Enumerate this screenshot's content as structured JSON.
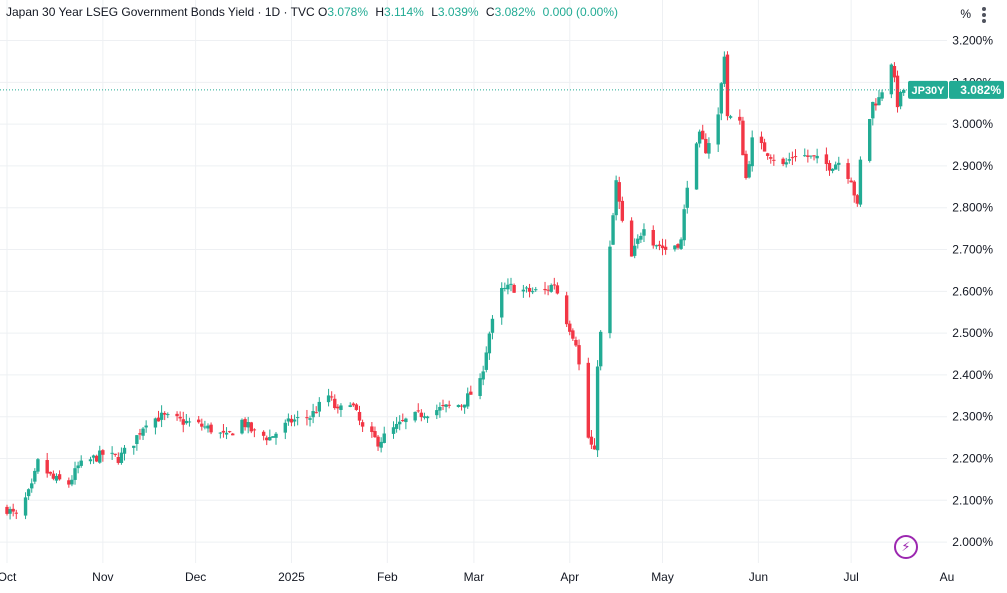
{
  "header": {
    "title": "Japan 30 Year LSEG Government Bonds Yield · 1D · TVC",
    "o_label": "O",
    "o_value": "3.078%",
    "h_label": "H",
    "h_value": "3.114%",
    "l_label": "L",
    "l_value": "3.039%",
    "c_label": "C",
    "c_value": "3.082%",
    "change": "0.000 (0.00%)"
  },
  "scale_unit": "%",
  "price_tag": {
    "symbol": "JP30Y",
    "value": "3.082%"
  },
  "colors": {
    "up": "#22ab94",
    "down": "#f23645",
    "accent": "#22ab94",
    "grid": "#eef0f3",
    "axis_text": "#131722",
    "tool_icon": "#9c27b0"
  },
  "icons": {
    "menu": "more-vert-icon",
    "tool": "lightning-icon"
  },
  "chart_data": {
    "type": "candlestick",
    "title": "Japan 30 Year LSEG Government Bonds Yield",
    "y_unit": "%",
    "ylim": [
      1.95,
      3.23
    ],
    "y_ticks": [
      "3.200%",
      "3.100%",
      "3.000%",
      "2.900%",
      "2.800%",
      "2.700%",
      "2.600%",
      "2.500%",
      "2.400%",
      "2.300%",
      "2.200%",
      "2.100%",
      "2.000%"
    ],
    "x_range": [
      "2024-10-01",
      "2025-08-01"
    ],
    "x_ticks": [
      {
        "label": "Oct",
        "date": "2024-10-01"
      },
      {
        "label": "Nov",
        "date": "2024-11-01"
      },
      {
        "label": "Dec",
        "date": "2024-12-01"
      },
      {
        "label": "2025",
        "date": "2025-01-01"
      },
      {
        "label": "Feb",
        "date": "2025-02-01"
      },
      {
        "label": "Mar",
        "date": "2025-03-01"
      },
      {
        "label": "Apr",
        "date": "2025-04-01"
      },
      {
        "label": "May",
        "date": "2025-05-01"
      },
      {
        "label": "Jun",
        "date": "2025-06-01"
      },
      {
        "label": "Jul",
        "date": "2025-07-01"
      },
      {
        "label": "Au",
        "date": "2025-08-01"
      }
    ],
    "grid": true,
    "last_value": 3.082,
    "anchors": [
      [
        "2024-10-01",
        2.08
      ],
      [
        "2024-10-04",
        2.06
      ],
      [
        "2024-10-09",
        2.13
      ],
      [
        "2024-10-11",
        2.19
      ],
      [
        "2024-10-16",
        2.15
      ],
      [
        "2024-10-21",
        2.14
      ],
      [
        "2024-10-24",
        2.18
      ],
      [
        "2024-10-29",
        2.2
      ],
      [
        "2024-11-01",
        2.21
      ],
      [
        "2024-11-06",
        2.2
      ],
      [
        "2024-11-11",
        2.24
      ],
      [
        "2024-11-15",
        2.29
      ],
      [
        "2024-11-20",
        2.3
      ],
      [
        "2024-11-26",
        2.29
      ],
      [
        "2024-12-02",
        2.28
      ],
      [
        "2024-12-06",
        2.27
      ],
      [
        "2024-12-11",
        2.25
      ],
      [
        "2024-12-16",
        2.29
      ],
      [
        "2024-12-20",
        2.26
      ],
      [
        "2024-12-25",
        2.25
      ],
      [
        "2025-01-01",
        2.29
      ],
      [
        "2025-01-07",
        2.3
      ],
      [
        "2025-01-13",
        2.35
      ],
      [
        "2025-01-16",
        2.31
      ],
      [
        "2025-01-20",
        2.34
      ],
      [
        "2025-01-24",
        2.27
      ],
      [
        "2025-01-29",
        2.24
      ],
      [
        "2025-02-03",
        2.27
      ],
      [
        "2025-02-07",
        2.29
      ],
      [
        "2025-02-13",
        2.31
      ],
      [
        "2025-02-19",
        2.32
      ],
      [
        "2025-02-25",
        2.33
      ],
      [
        "2025-03-03",
        2.38
      ],
      [
        "2025-03-06",
        2.5
      ],
      [
        "2025-03-10",
        2.6
      ],
      [
        "2025-03-13",
        2.61
      ],
      [
        "2025-03-18",
        2.6
      ],
      [
        "2025-03-24",
        2.6
      ],
      [
        "2025-03-27",
        2.62
      ],
      [
        "2025-03-31",
        2.53
      ],
      [
        "2025-04-03",
        2.48
      ],
      [
        "2025-04-07",
        2.25
      ],
      [
        "2025-04-09",
        2.21
      ],
      [
        "2025-04-10",
        2.43
      ],
      [
        "2025-04-14",
        2.7
      ],
      [
        "2025-04-16",
        2.86
      ],
      [
        "2025-04-18",
        2.76
      ],
      [
        "2025-04-21",
        2.68
      ],
      [
        "2025-04-25",
        2.76
      ],
      [
        "2025-04-28",
        2.72
      ],
      [
        "2025-05-02",
        2.7
      ],
      [
        "2025-05-07",
        2.72
      ],
      [
        "2025-05-09",
        2.86
      ],
      [
        "2025-05-13",
        2.97
      ],
      [
        "2025-05-15",
        2.94
      ],
      [
        "2025-05-19",
        3.02
      ],
      [
        "2025-05-21",
        3.17
      ],
      [
        "2025-05-22",
        3.02
      ],
      [
        "2025-05-26",
        3.0
      ],
      [
        "2025-05-28",
        2.87
      ],
      [
        "2025-05-30",
        2.96
      ],
      [
        "2025-06-03",
        2.94
      ],
      [
        "2025-06-09",
        2.9
      ],
      [
        "2025-06-13",
        2.93
      ],
      [
        "2025-06-18",
        2.92
      ],
      [
        "2025-06-24",
        2.9
      ],
      [
        "2025-06-27",
        2.91
      ],
      [
        "2025-07-01",
        2.87
      ],
      [
        "2025-07-03",
        2.8
      ],
      [
        "2025-07-04",
        2.91
      ],
      [
        "2025-07-08",
        3.05
      ],
      [
        "2025-07-10",
        3.06
      ],
      [
        "2025-07-14",
        3.15
      ],
      [
        "2025-07-16",
        3.05
      ],
      [
        "2025-07-18",
        3.082
      ]
    ]
  }
}
